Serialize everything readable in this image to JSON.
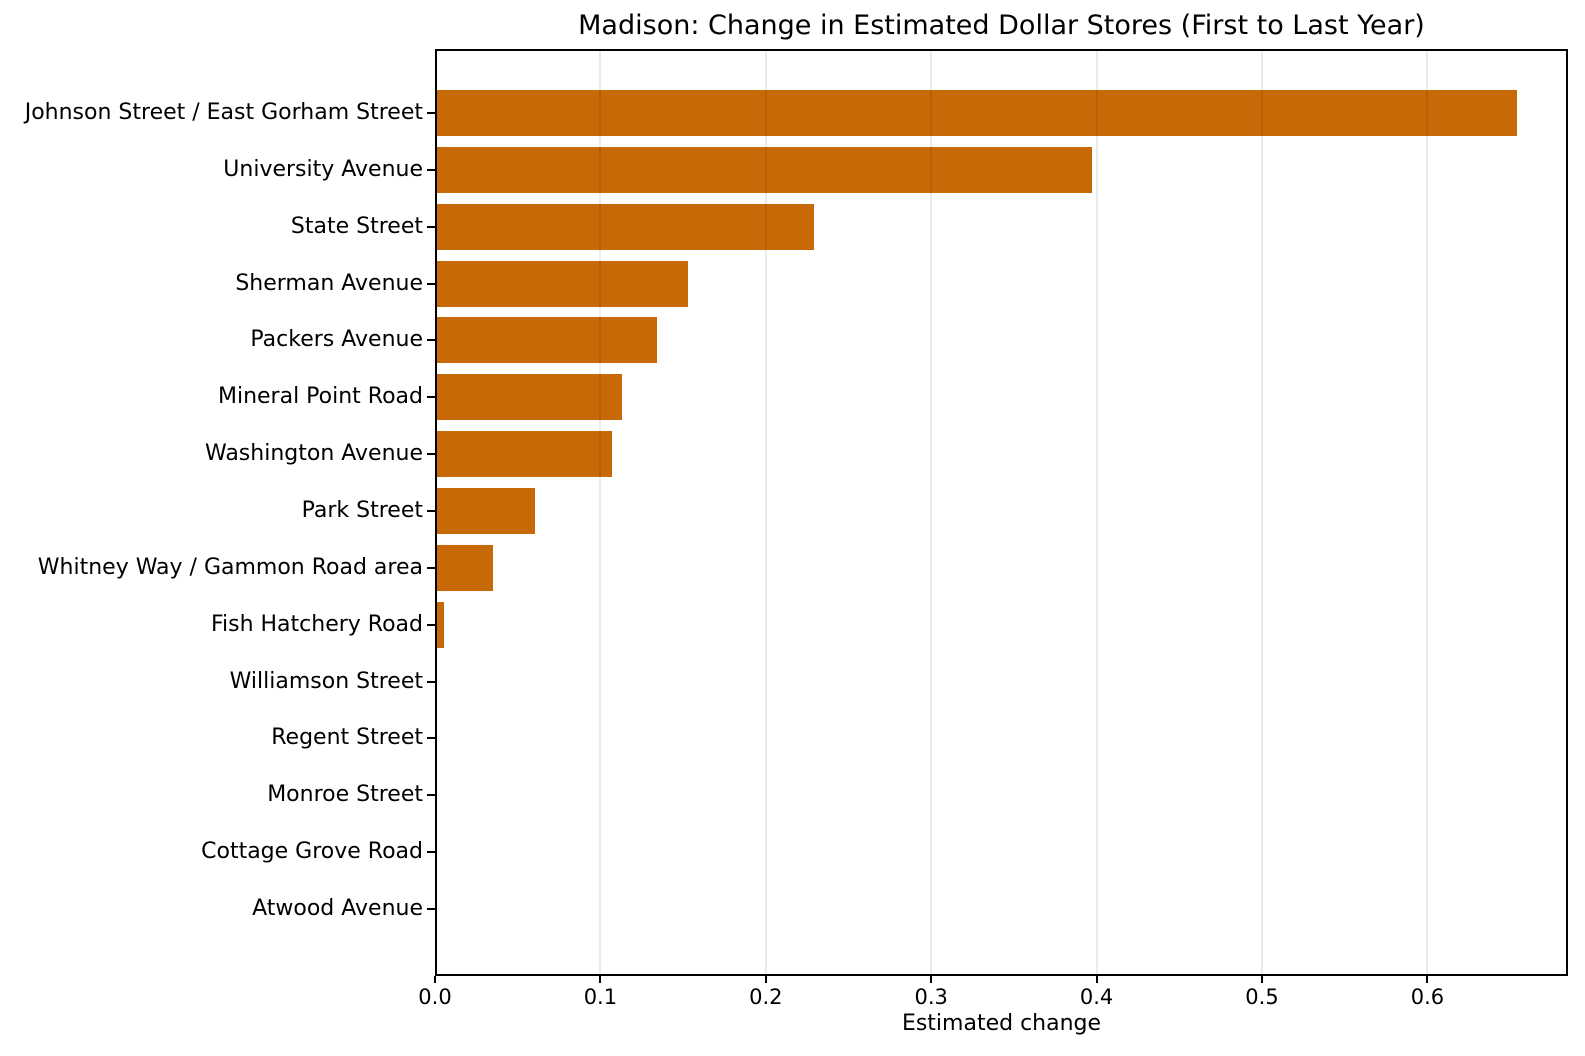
{
  "chart_data": {
    "type": "bar",
    "orientation": "horizontal",
    "title": "Madison: Change in Estimated Dollar Stores (First to Last Year)",
    "xlabel": "Estimated change",
    "ylabel": "",
    "categories": [
      "Johnson Street / East Gorham Street",
      "University Avenue",
      "State Street",
      "Sherman Avenue",
      "Packers Avenue",
      "Mineral Point Road",
      "Washington Avenue",
      "Park Street",
      "Whitney Way / Gammon Road area",
      "Fish Hatchery Road",
      "Williamson Street",
      "Regent Street",
      "Monroe Street",
      "Cottage Grove Road",
      "Atwood Avenue"
    ],
    "values": [
      0.653,
      0.396,
      0.228,
      0.152,
      0.133,
      0.112,
      0.106,
      0.059,
      0.034,
      0.004,
      0,
      0,
      0,
      0,
      0
    ],
    "xlim": [
      0,
      0.685
    ],
    "xticks": [
      0.0,
      0.1,
      0.2,
      0.3,
      0.4,
      0.5,
      0.6
    ],
    "xtick_labels": [
      "0.0",
      "0.1",
      "0.2",
      "0.3",
      "0.4",
      "0.5",
      "0.6"
    ],
    "bar_color": "#C86908",
    "text_color": "#000000",
    "spine_color": "#000000",
    "gridline_color": "rgba(0,0,0,0.08)",
    "grid": "vertical",
    "legend": "none",
    "background": "#FFFFFF"
  }
}
